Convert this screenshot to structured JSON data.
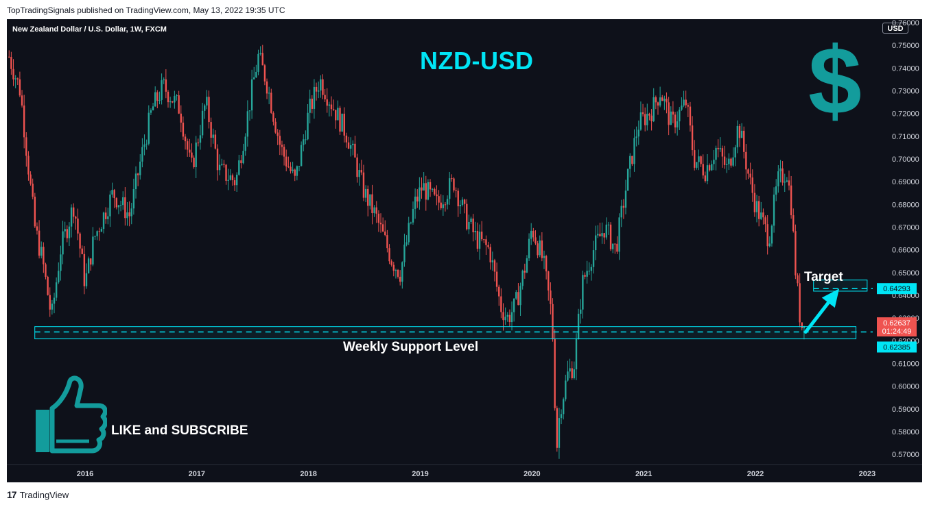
{
  "header": {
    "publisher_line": "TopTradingSignals published on TradingView.com, May 13, 2022 19:35 UTC"
  },
  "footer": {
    "brand_mark": "17",
    "brand": "TradingView"
  },
  "symbol_label": "New Zealand Dollar / U.S. Dollar, 1W, FXCM",
  "currency_button": "USD",
  "annotations": {
    "pair_title": "NZD-USD",
    "dollar_sign": "$",
    "target_label": "Target",
    "support_label": "Weekly Support Level",
    "cta": "LIKE and SUBSCRIBE"
  },
  "icons": [
    "dollar-icon",
    "thumbs-up-icon",
    "arrow-icon"
  ],
  "colors": {
    "background": "#0e111a",
    "up_candle": "#26a69a",
    "down_candle": "#ef5350",
    "accent": "#00e5f5",
    "dollar": "#139c9c"
  },
  "chart_data": {
    "type": "candlestick",
    "symbol": "NZDUSD",
    "timeframe": "1W",
    "x_tick_labels": [
      "2016",
      "2017",
      "2018",
      "2019",
      "2020",
      "2021",
      "2022",
      "2023"
    ],
    "y_tick_labels": [
      "0.57000",
      "0.58000",
      "0.59000",
      "0.60000",
      "0.61000",
      "0.62000",
      "0.63000",
      "0.64000",
      "0.65000",
      "0.66000",
      "0.67000",
      "0.68000",
      "0.69000",
      "0.70000",
      "0.71000",
      "0.72000",
      "0.73000",
      "0.74000",
      "0.75000",
      "0.76000"
    ],
    "ylim": [
      0.5655,
      0.7615
    ],
    "xlim": [
      2015.3,
      2023.05
    ],
    "price_path": [
      [
        2015.32,
        0.745
      ],
      [
        2015.42,
        0.73
      ],
      [
        2015.55,
        0.67
      ],
      [
        2015.62,
        0.655
      ],
      [
        2015.7,
        0.63
      ],
      [
        2015.78,
        0.66
      ],
      [
        2015.9,
        0.68
      ],
      [
        2016.0,
        0.645
      ],
      [
        2016.08,
        0.665
      ],
      [
        2016.25,
        0.685
      ],
      [
        2016.4,
        0.675
      ],
      [
        2016.5,
        0.7
      ],
      [
        2016.6,
        0.722
      ],
      [
        2016.7,
        0.732
      ],
      [
        2016.85,
        0.722
      ],
      [
        2016.95,
        0.695
      ],
      [
        2017.08,
        0.725
      ],
      [
        2017.2,
        0.695
      ],
      [
        2017.35,
        0.69
      ],
      [
        2017.5,
        0.732
      ],
      [
        2017.55,
        0.745
      ],
      [
        2017.62,
        0.735
      ],
      [
        2017.75,
        0.705
      ],
      [
        2017.88,
        0.69
      ],
      [
        2018.0,
        0.72
      ],
      [
        2018.1,
        0.735
      ],
      [
        2018.2,
        0.725
      ],
      [
        2018.35,
        0.71
      ],
      [
        2018.5,
        0.685
      ],
      [
        2018.6,
        0.675
      ],
      [
        2018.75,
        0.655
      ],
      [
        2018.82,
        0.65
      ],
      [
        2018.95,
        0.68
      ],
      [
        2019.02,
        0.688
      ],
      [
        2019.15,
        0.68
      ],
      [
        2019.3,
        0.69
      ],
      [
        2019.4,
        0.675
      ],
      [
        2019.5,
        0.665
      ],
      [
        2019.62,
        0.66
      ],
      [
        2019.72,
        0.635
      ],
      [
        2019.78,
        0.63
      ],
      [
        2019.85,
        0.635
      ],
      [
        2019.95,
        0.655
      ],
      [
        2020.0,
        0.67
      ],
      [
        2020.1,
        0.655
      ],
      [
        2020.18,
        0.63
      ],
      [
        2020.22,
        0.572
      ],
      [
        2020.25,
        0.59
      ],
      [
        2020.32,
        0.605
      ],
      [
        2020.38,
        0.61
      ],
      [
        2020.45,
        0.645
      ],
      [
        2020.55,
        0.66
      ],
      [
        2020.65,
        0.67
      ],
      [
        2020.75,
        0.66
      ],
      [
        2020.85,
        0.69
      ],
      [
        2020.95,
        0.715
      ],
      [
        2021.08,
        0.722
      ],
      [
        2021.15,
        0.73
      ],
      [
        2021.25,
        0.715
      ],
      [
        2021.38,
        0.725
      ],
      [
        2021.45,
        0.7
      ],
      [
        2021.55,
        0.695
      ],
      [
        2021.65,
        0.705
      ],
      [
        2021.75,
        0.695
      ],
      [
        2021.85,
        0.715
      ],
      [
        2021.95,
        0.69
      ],
      [
        2022.0,
        0.68
      ],
      [
        2022.08,
        0.67
      ],
      [
        2022.12,
        0.665
      ],
      [
        2022.2,
        0.69
      ],
      [
        2022.28,
        0.695
      ],
      [
        2022.32,
        0.68
      ],
      [
        2022.36,
        0.65
      ],
      [
        2022.4,
        0.63
      ],
      [
        2022.43,
        0.6237
      ],
      [
        2022.44,
        0.6264
      ]
    ],
    "last_price": 0.62637,
    "countdown": "01:24:49",
    "support_level": 0.62385,
    "support_zone": [
      0.6208,
      0.6262
    ],
    "target_level": 0.64293,
    "target_zone": [
      0.6418,
      0.6467
    ],
    "target_label": "Target",
    "support_label": "Weekly Support Level",
    "price_labels": {
      "target": "0.64293",
      "last": "0.62637",
      "countdown": "01:24:49",
      "support": "0.62385"
    },
    "arrow": {
      "from": [
        2022.45,
        0.62385
      ],
      "to": [
        2022.75,
        0.64293
      ]
    },
    "grid": false
  }
}
